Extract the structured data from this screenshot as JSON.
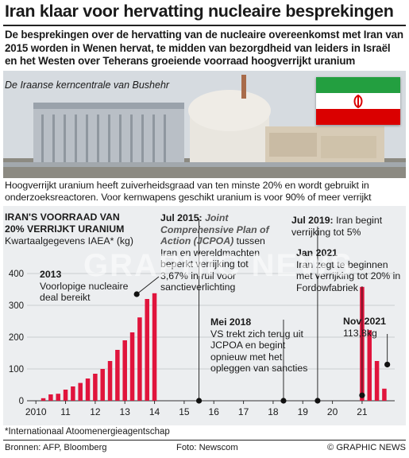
{
  "title": "Iran klaar voor hervatting nucleaire besprekingen",
  "subtitle": "De besprekingen over de hervatting van de nucleaire overeenkomst met Iran van 2015 worden in Wenen hervat, te midden van bezorgdheid van leiders in Israël en het Westen over Teherans groeiende voorraad hoogverrijkt uranium",
  "photo": {
    "caption": "De Iraanse kerncentrale van Bushehr"
  },
  "flag": {
    "colors": {
      "green": "#239f40",
      "white": "#ffffff",
      "red": "#da0000"
    }
  },
  "intro": "Hoogverrijkt uranium heeft zuiverheidsgraad van ten minste 20% en wordt gebruikt in onderzoeksreactoren. Voor kernwapens geschikt uranium is voor 90% of meer verrijkt",
  "chart": {
    "title_line1": "IRAN'S VOORRAAD VAN",
    "title_line2": "20% VERRIJKT URANIUM",
    "unit": "Kwartaalgegevens IAEA* (kg)"
  },
  "annotations": {
    "a2013": {
      "head": "2013",
      "body": "Voorlopige nucleaire deal bereikt"
    },
    "a2015": {
      "head": "Jul 2015:",
      "italic": "Joint Comprehensive Plan of Action (JCPOA)",
      "body": "tussen Iran en wereldmachten beperkt verrijking tot 3,67% in ruil voor sanctieverlichting"
    },
    "a2018": {
      "head": "Mei 2018",
      "body": "VS trekt zich terug uit JCPOA en begint opnieuw met het opleggen van sancties"
    },
    "a2019": {
      "head": "Jul 2019:",
      "body": "Iran begint verrijking tot 5%"
    },
    "a2021": {
      "head": "Jan 2021",
      "body": "Iran zegt te beginnen met verrijking tot 20% in Fordowfabriek"
    },
    "a2021b": {
      "head": "Nov 2021",
      "body": "113,8kg"
    }
  },
  "footnote": "*Internationaal Atoomenergieagentschap",
  "footer": {
    "sources": "Bronnen: AFP, Bloomberg",
    "photo": "Foto: Newscom",
    "credit": "© GRAPHIC NEWS"
  },
  "watermark": "GRAPHIC NEWS",
  "chart_data": {
    "type": "bar",
    "xlabel": "",
    "ylabel": "",
    "ylim": [
      0,
      400
    ],
    "yticks": [
      0,
      100,
      200,
      300,
      400
    ],
    "xticks": [
      "2010",
      "11",
      "12",
      "13",
      "14",
      "15",
      "16",
      "17",
      "18",
      "19",
      "20",
      "21"
    ],
    "bar_color": "#e0143c",
    "x": [
      2010.25,
      2010.5,
      2010.75,
      2011.0,
      2011.25,
      2011.5,
      2011.75,
      2012.0,
      2012.25,
      2012.5,
      2012.75,
      2013.0,
      2013.25,
      2013.5,
      2013.75,
      2014.0,
      2021.0,
      2021.25,
      2021.5,
      2021.75
    ],
    "values": [
      8,
      20,
      22,
      35,
      45,
      56,
      70,
      85,
      100,
      125,
      160,
      190,
      215,
      262,
      320,
      338,
      358,
      222,
      125,
      38
    ],
    "markers": [
      {
        "x": 2013.4,
        "y": 335
      },
      {
        "x": 2015.5,
        "y": 0
      },
      {
        "x": 2018.35,
        "y": 0
      },
      {
        "x": 2019.5,
        "y": 0
      },
      {
        "x": 2021.0,
        "y": 17
      },
      {
        "x": 2021.85,
        "y": 113.8
      }
    ]
  }
}
